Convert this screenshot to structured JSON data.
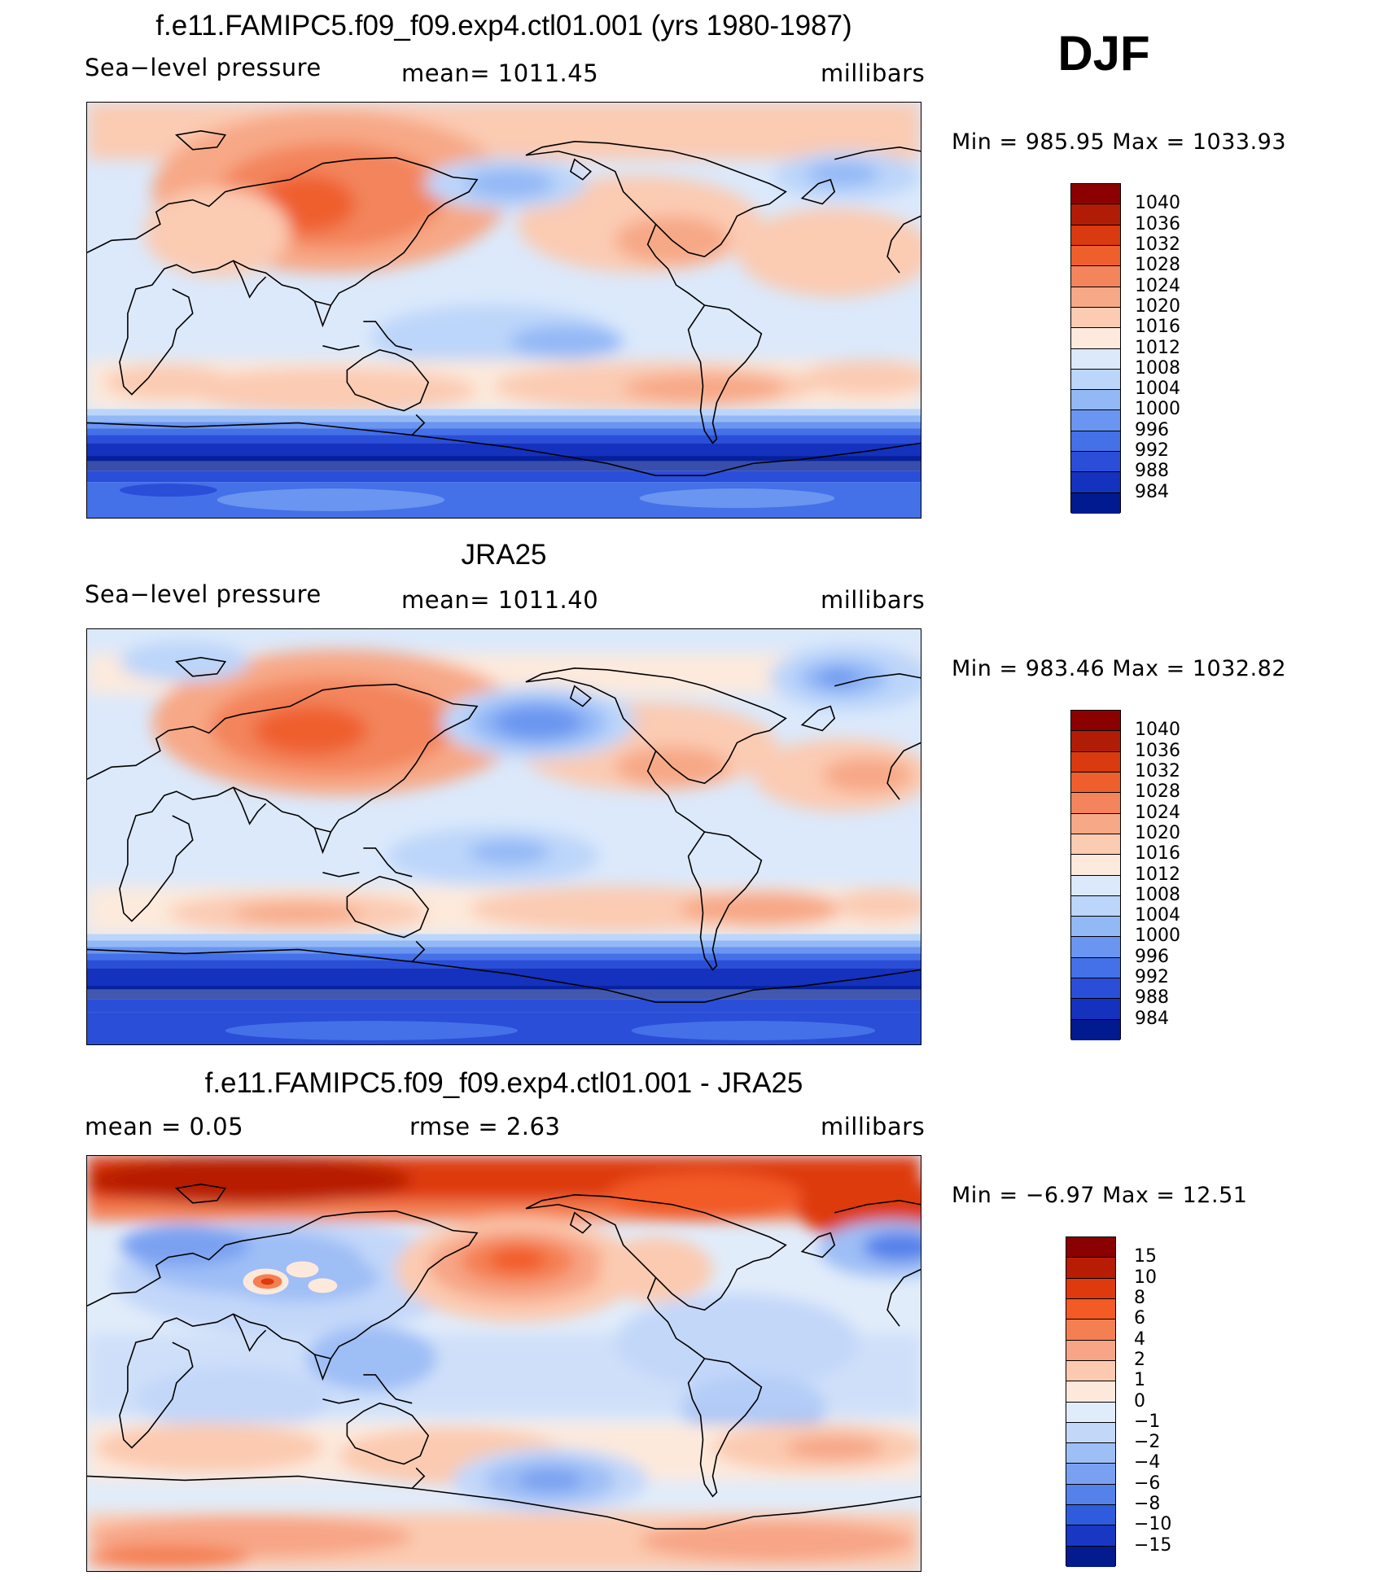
{
  "season": "DJF",
  "panels": [
    {
      "id": "model",
      "title": "f.e11.FAMIPC5.f09_f09.exp4.ctl01.001 (yrs 1980-1987)",
      "left_label": "Sea−level pressure",
      "center_label": "mean=  1011.45",
      "right_label": "millibars",
      "minmax": "Min  =  985.95  Max  =  1033.93",
      "colorbar_labels": [
        "1040",
        "1036",
        "1032",
        "1028",
        "1024",
        "1020",
        "1016",
        "1012",
        "1008",
        "1004",
        "1000",
        "996",
        "992",
        "988",
        "984"
      ]
    },
    {
      "id": "obs",
      "title": "JRA25",
      "left_label": "Sea−level pressure",
      "center_label": "mean=  1011.40",
      "right_label": "millibars",
      "minmax": "Min  =  983.46  Max  =  1032.82",
      "colorbar_labels": [
        "1040",
        "1036",
        "1032",
        "1028",
        "1024",
        "1020",
        "1016",
        "1012",
        "1008",
        "1004",
        "1000",
        "996",
        "992",
        "988",
        "984"
      ]
    },
    {
      "id": "diff",
      "title": "f.e11.FAMIPC5.f09_f09.exp4.ctl01.001 - JRA25",
      "left_label": "mean  =      0.05",
      "center_label": "rmse  =      2.63",
      "right_label": "millibars",
      "minmax": "Min  =    −6.97  Max  =     12.51",
      "colorbar_labels": [
        "15",
        "10",
        "8",
        "6",
        "4",
        "2",
        "1",
        "0",
        "−1",
        "−2",
        "−4",
        "−6",
        "−8",
        "−10",
        "−15"
      ]
    }
  ],
  "colors": {
    "abs_scale": [
      "#8b0000",
      "#b01c06",
      "#d93a10",
      "#ef5f2e",
      "#f3845c",
      "#f7a886",
      "#fbcbb2",
      "#fdeadc",
      "#dbe9fb",
      "#bcd5fa",
      "#93b8f6",
      "#6a95f0",
      "#4470e8",
      "#2a4ed8",
      "#1432bd",
      "#021a8f"
    ],
    "diff_scale": [
      "#8b0000",
      "#b71c05",
      "#de3a0e",
      "#f25a26",
      "#f48052",
      "#f7a586",
      "#fbcab0",
      "#fde9dc",
      "#e1ecfa",
      "#c3d7f9",
      "#9ebef6",
      "#7aa1f1",
      "#5581ea",
      "#2f5cdd",
      "#1838c4",
      "#031b8f"
    ],
    "coastline": "#000000"
  }
}
